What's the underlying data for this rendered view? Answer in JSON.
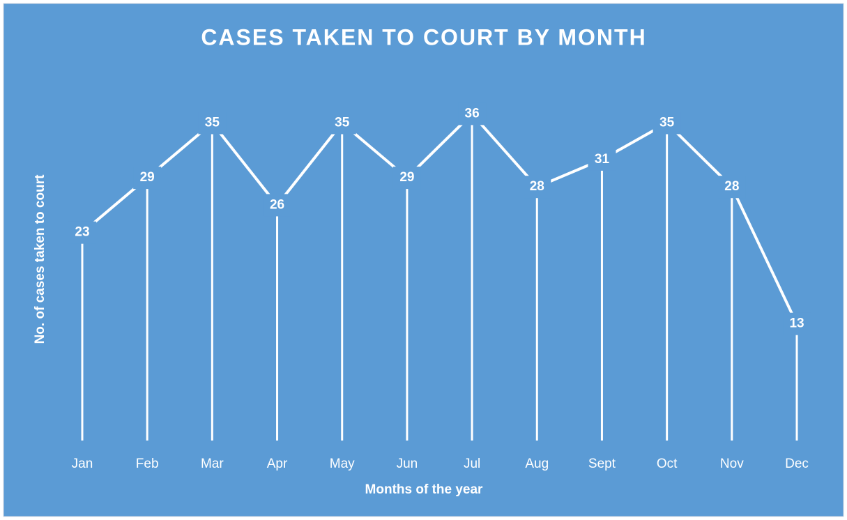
{
  "chart_data": {
    "type": "line",
    "title": "CASES TAKEN TO COURT BY MONTH",
    "x_label": "Months of the year",
    "y_label": "No. of cases taken to court",
    "categories": [
      "Jan",
      "Feb",
      "Mar",
      "Apr",
      "May",
      "Jun",
      "Jul",
      "Aug",
      "Sept",
      "Oct",
      "Nov",
      "Dec"
    ],
    "values": [
      23,
      29,
      35,
      26,
      35,
      29,
      36,
      28,
      31,
      35,
      28,
      13
    ],
    "color": "#ffffff",
    "background": "#5b9bd5",
    "ylim": [
      0,
      40
    ],
    "drop_lines": true
  }
}
